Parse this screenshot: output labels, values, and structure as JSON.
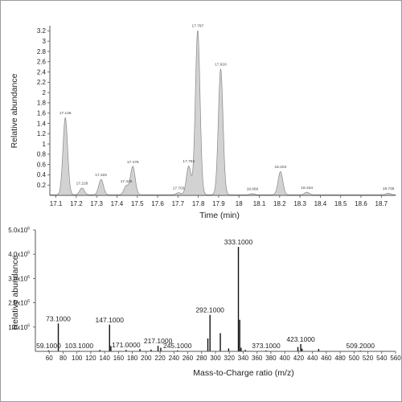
{
  "colors": {
    "chrom_fill": "#d2d2d2",
    "chrom_line": "#888888",
    "spectrum": "#111111",
    "axis": "#555555",
    "frame": "#9a9a9a"
  },
  "chart_data": [
    {
      "type": "area",
      "xlabel": "Time (min)",
      "ylabel": "Relative abundance",
      "xlim": [
        17.07,
        18.77
      ],
      "ylim": [
        0,
        3.3
      ],
      "x_ticks": [
        "17.1",
        "17.2",
        "17.3",
        "17.4",
        "17.5",
        "17.6",
        "17.7",
        "17.8",
        "17.9",
        "18",
        "18.1",
        "18.2",
        "18.3",
        "18.4",
        "18.5",
        "18.6",
        "18.7"
      ],
      "y_ticks": [
        "0.2",
        "0.4",
        "0.6",
        "0.8",
        "1",
        "1.2",
        "1.4",
        "1.6",
        "1.8",
        "2",
        "2.2",
        "2.4",
        "2.6",
        "2.8",
        "3",
        "3.2"
      ],
      "peaks": [
        {
          "time": 17.146,
          "abundance": 1.5,
          "label": "17.146"
        },
        {
          "time": 17.228,
          "abundance": 0.13,
          "label": "17.228"
        },
        {
          "time": 17.322,
          "abundance": 0.3,
          "label": "17.322"
        },
        {
          "time": 17.446,
          "abundance": 0.17,
          "label": "17.446"
        },
        {
          "time": 17.478,
          "abundance": 0.55,
          "label": "17.478"
        },
        {
          "time": 17.703,
          "abundance": 0.04,
          "label": "17.703"
        },
        {
          "time": 17.753,
          "abundance": 0.56,
          "label": "17.753"
        },
        {
          "time": 17.797,
          "abundance": 3.2,
          "label": "17.797"
        },
        {
          "time": 17.91,
          "abundance": 2.45,
          "label": "17.910"
        },
        {
          "time": 18.066,
          "abundance": 0.02,
          "label": "18.066"
        },
        {
          "time": 18.204,
          "abundance": 0.45,
          "label": "18.204"
        },
        {
          "time": 18.334,
          "abundance": 0.05,
          "label": "18.334"
        },
        {
          "time": 18.735,
          "abundance": 0.03,
          "label": "18.735"
        }
      ],
      "grid": false
    },
    {
      "type": "bar",
      "xlabel": "Mass-to-Charge ratio (m/z)",
      "ylabel": "Relative abundance",
      "xlim": [
        40,
        560
      ],
      "ylim": [
        0,
        5000000
      ],
      "x_ticks": [
        "60",
        "80",
        "100",
        "120",
        "140",
        "160",
        "180",
        "200",
        "220",
        "240",
        "260",
        "280",
        "300",
        "320",
        "340",
        "360",
        "380",
        "400",
        "420",
        "440",
        "460",
        "480",
        "500",
        "520",
        "540",
        "560"
      ],
      "y_ticks": [
        {
          "mantissa": "1.0x10",
          "exp": "6",
          "value": 1000000
        },
        {
          "mantissa": "2.0x10",
          "exp": "6",
          "value": 2000000
        },
        {
          "mantissa": "3.0x10",
          "exp": "6",
          "value": 3000000
        },
        {
          "mantissa": "4.0x10",
          "exp": "6",
          "value": 4000000
        },
        {
          "mantissa": "5.0x10",
          "exp": "6",
          "value": 5000000
        }
      ],
      "ions": [
        {
          "mz": 59.1,
          "abundance": 40000,
          "label": "59.1000"
        },
        {
          "mz": 73.1,
          "abundance": 1150000,
          "label": "73.1000"
        },
        {
          "mz": 103.1,
          "abundance": 25000,
          "label": "103.1000"
        },
        {
          "mz": 133,
          "abundance": 60000
        },
        {
          "mz": 147.1,
          "abundance": 1100000,
          "label": "147.1000"
        },
        {
          "mz": 149,
          "abundance": 220000
        },
        {
          "mz": 171,
          "abundance": 60000,
          "label": "171.0000"
        },
        {
          "mz": 191,
          "abundance": 90000
        },
        {
          "mz": 207,
          "abundance": 70000
        },
        {
          "mz": 217.1,
          "abundance": 230000,
          "label": "217.1000"
        },
        {
          "mz": 221,
          "abundance": 150000
        },
        {
          "mz": 245.1,
          "abundance": 40000,
          "label": "245.1000"
        },
        {
          "mz": 289,
          "abundance": 530000
        },
        {
          "mz": 292.1,
          "abundance": 1500000,
          "label": "292.1000"
        },
        {
          "mz": 307,
          "abundance": 750000
        },
        {
          "mz": 319,
          "abundance": 120000
        },
        {
          "mz": 333.1,
          "abundance": 4300000,
          "label": "333.1000"
        },
        {
          "mz": 335,
          "abundance": 1300000
        },
        {
          "mz": 337,
          "abundance": 150000
        },
        {
          "mz": 343,
          "abundance": 60000
        },
        {
          "mz": 373.1,
          "abundance": 40000,
          "label": "373.1000"
        },
        {
          "mz": 419,
          "abundance": 180000
        },
        {
          "mz": 423.1,
          "abundance": 300000,
          "label": "423.1000"
        },
        {
          "mz": 425,
          "abundance": 110000
        },
        {
          "mz": 449,
          "abundance": 100000
        },
        {
          "mz": 509.2,
          "abundance": 30000,
          "label": "509.2000"
        }
      ],
      "grid": false
    }
  ]
}
